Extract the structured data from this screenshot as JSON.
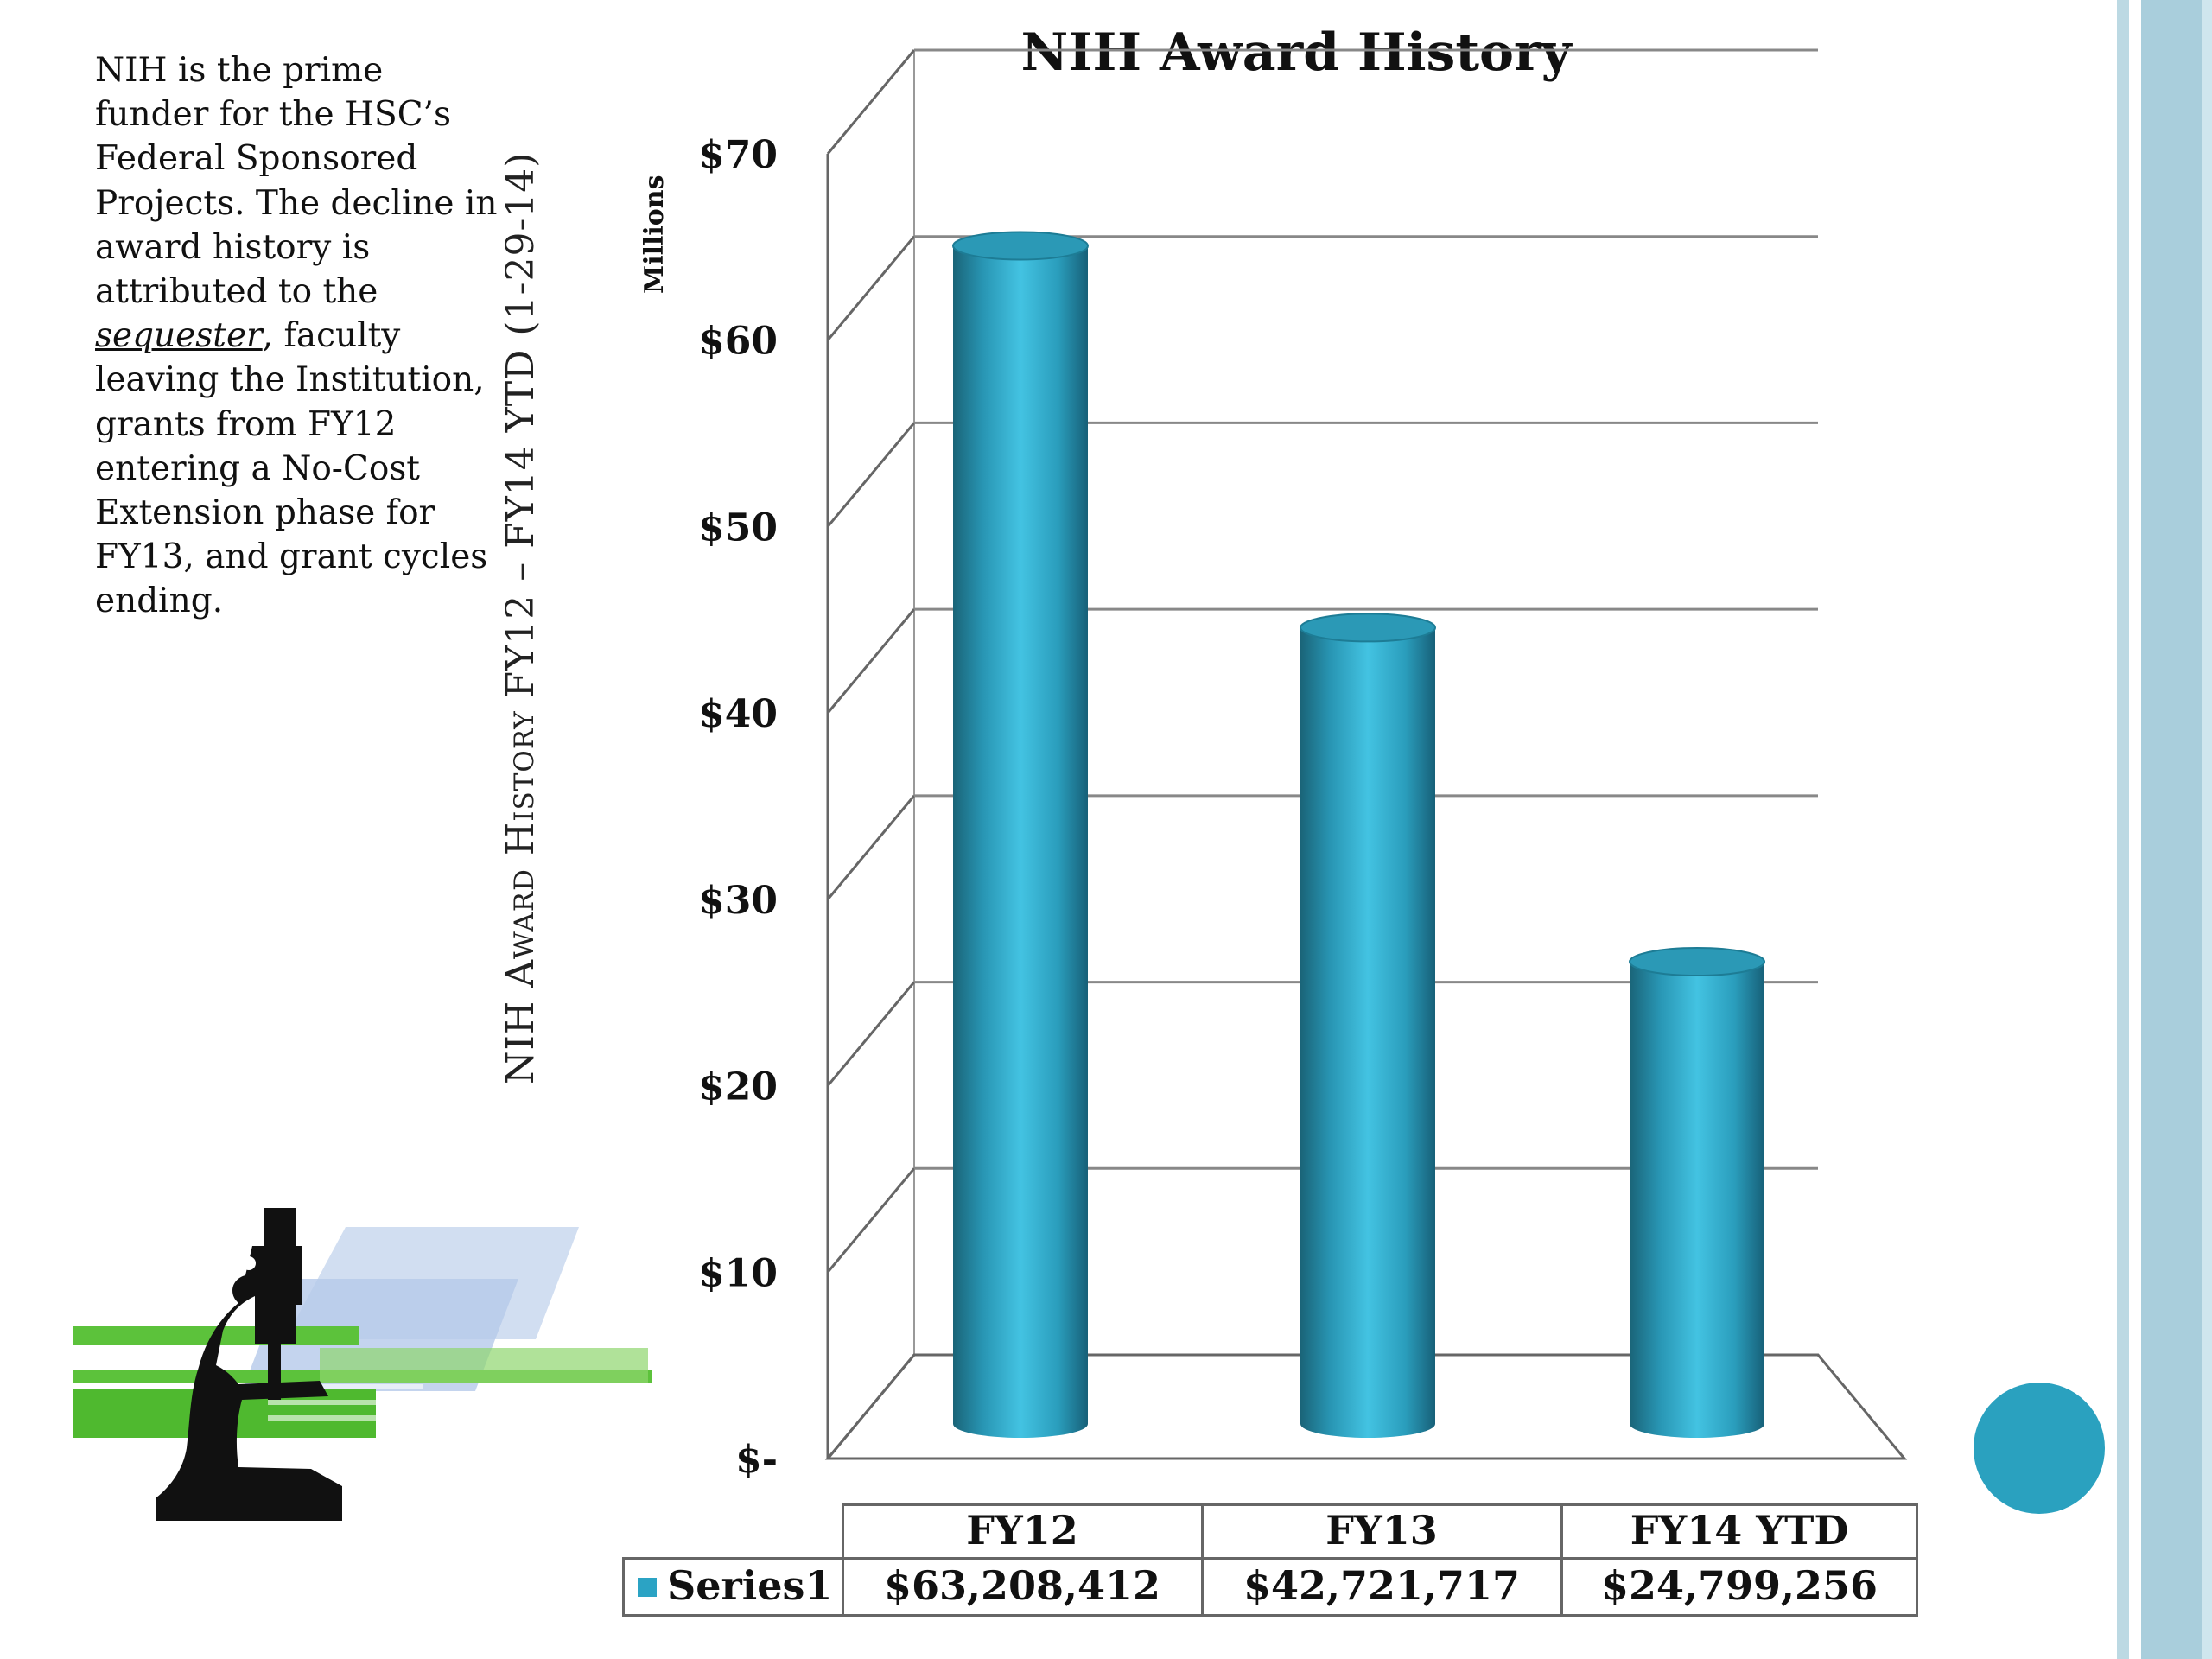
{
  "note": {
    "part1": "NIH is the prime funder for the HSC’s Federal Sponsored Projects.  The decline in award history is attributed to the ",
    "emphasis": "sequester",
    "part2": ", faculty leaving the Institution, grants from FY12 entering a No-Cost Extension phase for FY13, and grant cycles ending."
  },
  "side_title": "NIH Award History FY12 – FY14 YTD (1-29-14)",
  "colors": {
    "bar": "#2ba3c4",
    "bar_dark": "#1b6f85",
    "accent_dot": "#2aa1bf",
    "stripe": "#a9cedc"
  },
  "chart_data": {
    "type": "bar",
    "title": "NIH Award History",
    "ylabel": "Millions",
    "xlabel": "",
    "ylim": [
      0,
      70
    ],
    "yticks": [
      0,
      10,
      20,
      30,
      40,
      50,
      60,
      70
    ],
    "ytick_labels": [
      "$-",
      "$10",
      "$20",
      "$30",
      "$40",
      "$50",
      "$60",
      "$70"
    ],
    "categories": [
      "FY12",
      "FY13",
      "FY14 YTD"
    ],
    "series": [
      {
        "name": "Series1",
        "values": [
          63.208412,
          42.721717,
          24.799256
        ],
        "labels": [
          "$63,208,412",
          "$42,721,717",
          "$24,799,256"
        ]
      }
    ],
    "grid": true,
    "style": "3d-cylinder",
    "legend": "in data table, left"
  },
  "table": {
    "headers": [
      "FY12",
      "FY13",
      "FY14 YTD"
    ],
    "row_name": "Series1",
    "values": [
      "$63,208,412",
      "$42,721,717",
      "$24,799,256"
    ]
  }
}
